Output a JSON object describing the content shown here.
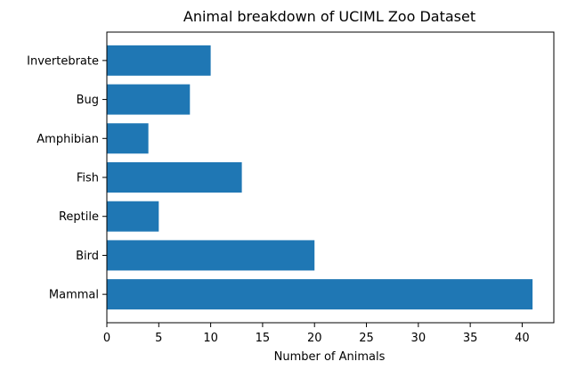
{
  "chart_data": {
    "type": "bar",
    "orientation": "horizontal",
    "title": "Animal breakdown of UCIML Zoo Dataset",
    "xlabel": "Number of Animals",
    "ylabel": "",
    "categories": [
      "Mammal",
      "Bird",
      "Reptile",
      "Fish",
      "Amphibian",
      "Bug",
      "Invertebrate"
    ],
    "values": [
      41,
      20,
      5,
      13,
      4,
      8,
      10
    ],
    "xlim": [
      0,
      43.05
    ],
    "xticks": [
      0,
      5,
      10,
      15,
      20,
      25,
      30,
      35,
      40
    ],
    "grid": false,
    "bar_color": "#1f77b4"
  }
}
